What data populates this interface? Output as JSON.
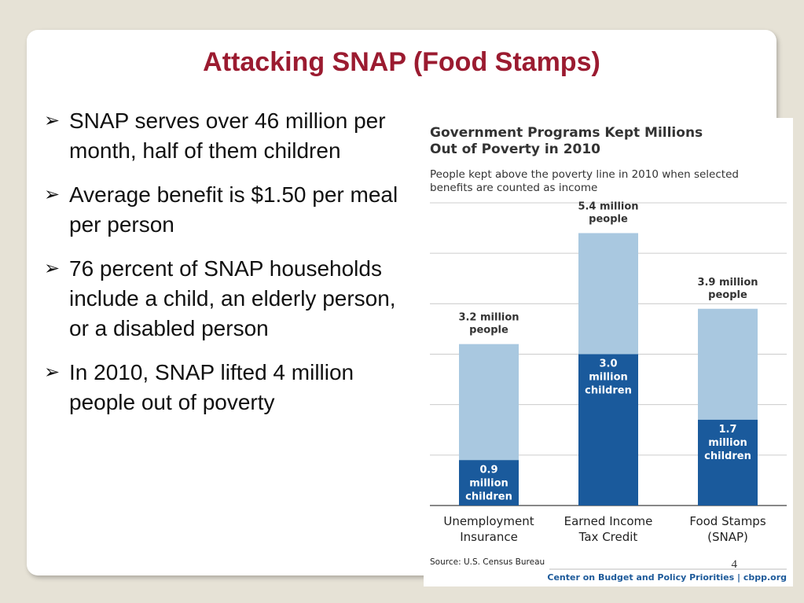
{
  "slide": {
    "title": "Attacking SNAP (Food Stamps)",
    "bullets": [
      "SNAP serves over 46 million per month, half of them children",
      "Average benefit is $1.50 per meal per person",
      "76 percent of SNAP households include a child, an elderly person, or a disabled person",
      "In 2010, SNAP lifted 4 million people out of poverty"
    ],
    "bullet_marker": "➢",
    "page_number": "4"
  },
  "chart_data": {
    "type": "bar",
    "stacked": false,
    "title_lines": [
      "Government Programs Kept Millions",
      "Out of Poverty in 2010"
    ],
    "subtitle_lines": [
      "People kept above the poverty line in 2010 when selected",
      "benefits are counted as income"
    ],
    "categories": [
      [
        "Unemployment",
        "Insurance"
      ],
      [
        "Earned Income",
        "Tax Credit"
      ],
      [
        "Food Stamps",
        "(SNAP)"
      ]
    ],
    "series": [
      {
        "name": "people",
        "values": [
          3.2,
          5.4,
          3.9
        ],
        "color": "#a9c8e0"
      },
      {
        "name": "children",
        "values": [
          0.9,
          3.0,
          1.7
        ],
        "color": "#1a5a9c"
      }
    ],
    "total_labels": [
      [
        "3.2 million",
        "people"
      ],
      [
        "5.4 million",
        "people"
      ],
      [
        "3.9 million",
        "people"
      ]
    ],
    "children_labels": [
      [
        "0.9",
        "million",
        "children"
      ],
      [
        "3.0",
        "million",
        "children"
      ],
      [
        "1.7",
        "million",
        "children"
      ]
    ],
    "ylim": [
      0,
      6
    ],
    "gridlines": [
      0,
      1,
      2,
      3,
      4,
      5,
      6
    ],
    "grid": true,
    "xlabel": "",
    "ylabel": "",
    "source": "Source: U.S. Census Bureau",
    "credit": "Center on Budget and Policy Priorities | cbpp.org"
  }
}
